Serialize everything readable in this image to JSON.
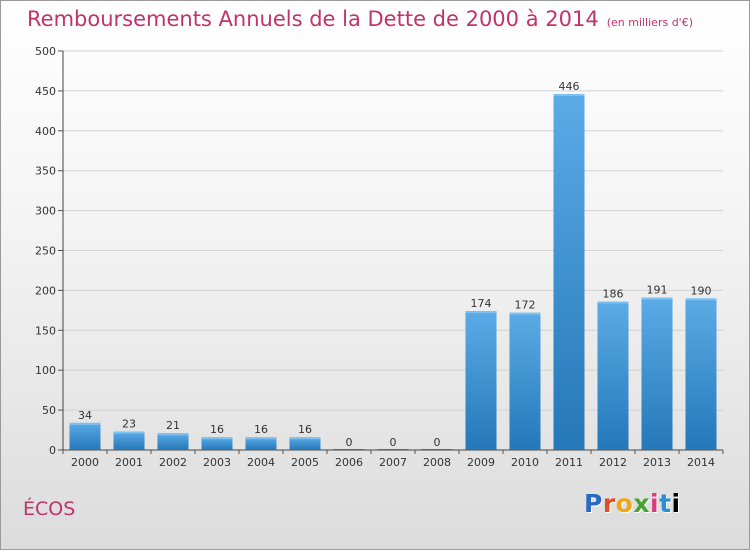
{
  "header": {
    "title": "Remboursements Annuels de la Dette de 2000 à 2014",
    "subtitle": "(en milliers d'€)"
  },
  "footer": {
    "commune": "ÉCOS",
    "logo_text": "Proxiti"
  },
  "colors": {
    "title": "#c0336b",
    "bar_top": "#5aabe6",
    "bar_bottom": "#2677b8"
  },
  "chart_data": {
    "type": "bar",
    "title": "Remboursements Annuels de la Dette de 2000 à 2014",
    "subtitle": "(en milliers d'€)",
    "xlabel": "",
    "ylabel": "",
    "ylim": [
      0,
      500
    ],
    "yticks": [
      0,
      50,
      100,
      150,
      200,
      250,
      300,
      350,
      400,
      450,
      500
    ],
    "grid": true,
    "categories": [
      "2000",
      "2001",
      "2002",
      "2003",
      "2004",
      "2005",
      "2006",
      "2007",
      "2008",
      "2009",
      "2010",
      "2011",
      "2012",
      "2013",
      "2014"
    ],
    "values": [
      34,
      23,
      21,
      16,
      16,
      16,
      0,
      0,
      0,
      174,
      172,
      446,
      186,
      191,
      190
    ]
  }
}
